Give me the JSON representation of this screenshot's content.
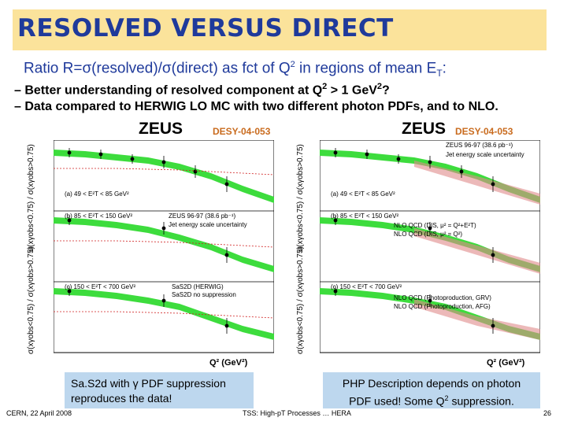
{
  "header": {
    "title": "RESOLVED VERSUS DIRECT",
    "subtitle_main": "Ratio R=σ(resolved)/σ(direct) as fct of Q",
    "subtitle_sup": "2",
    "subtitle_mid": " in regions of mean E",
    "subtitle_sub": "T",
    "subtitle_end": ":"
  },
  "bullets": [
    {
      "pre": "– Better understanding of resolved component at Q",
      "sup": "2",
      "post": " > 1 GeV",
      "sup2": "2",
      "end": "?"
    },
    {
      "text": "– Data compared to HERWIG LO MC with two different photon PDFs, and to NLO."
    }
  ],
  "left_plot": {
    "zeus": "ZEUS",
    "desy": "DESY-04-053",
    "ylabel": "σ(x",
    "ylabel_full": "σ(xγobs<0.75) / σ(xγobs>0.75)",
    "panel_a": "(a)  49 < E²T < 85 GeV²",
    "panel_b": "(b)  85 < E²T < 150 GeV²",
    "panel_c": "(c)  150 < E²T < 700 GeV²",
    "legend_data": "ZEUS 96-97 (38.6 pb⁻¹)",
    "legend_jes": "Jet energy scale uncertainty",
    "legend_herwig": "SaS2D (HERWIG)",
    "legend_nosup": "SaS2D  no suppression",
    "xlabel": "Q² (GeV²)"
  },
  "right_plot": {
    "zeus": "ZEUS",
    "desy": "DESY-04-053",
    "ylabel_full": "σ(xγobs<0.75) / σ(xγobs>0.75)",
    "legend_data": "ZEUS 96-97 (38.6 pb⁻¹)",
    "legend_jes": "Jet energy scale uncertainty",
    "panel_a": "(a)  49 < E²T < 85 GeV²",
    "panel_b": "(b)  85 < E²T < 150 GeV²",
    "panel_c": "(c)  150 < E²T < 700 GeV²",
    "nlo1": "NLO QCD (DIS, μ² = Q²+E²T)",
    "nlo2": "NLO QCD (DIS, μ² = Q²)",
    "nlo3": "NLO QCD (Photoproduction, GRV)",
    "nlo4": "NLO QCD (Photoproduction, AFG)",
    "xlabel": "Q² (GeV²)"
  },
  "callouts": {
    "left": "Sa.S2d with γ PDF suppression reproduces the data!",
    "right_line1": "PHP Description depends on photon",
    "right_line2_pre": "PDF used! Some Q",
    "right_line2_sup": "2",
    "right_line2_post": " suppression."
  },
  "footer": {
    "left": "CERN, 22 April 2008",
    "center": "TSS: High-pT Processes … HERA",
    "page": "26"
  },
  "colors": {
    "title_bg": "#fbe39b",
    "title_text": "#1f3a9b",
    "band_green": "#3ddc3d",
    "callout_bg": "#bdd7ee",
    "desy_orange": "#c96b1e"
  }
}
